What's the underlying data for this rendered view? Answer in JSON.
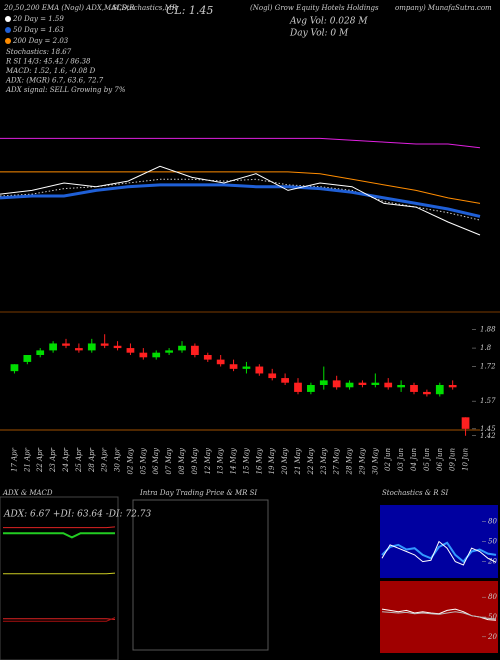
{
  "header": {
    "line1": "20,50,200 EMA (Nogl) ADX,MACD,R",
    "line2": "SI,Stochastics,MR",
    "close": "CL: 1.45",
    "company": "(Nogl) Grow Equity Hotels Holdings",
    "site": "ompany) MunafaSutra.com",
    "avg_vol": "Avg Vol: 0.028 M",
    "day_vol": "Day Vol: 0 M",
    "legend": [
      {
        "text": "20 Day = 1.59",
        "color": "#ffffff"
      },
      {
        "text": "50 Day = 1.63",
        "color": "#1f5fd6"
      },
      {
        "text": "200 Day = 2.03",
        "color": "#ff8c00"
      }
    ],
    "notes": [
      "Stochastics: 18.67",
      "R SI 14/3: 45.42 / 86.38",
      "MACD: 1.52, 1.6, -0.08 D",
      "ADX: (MGR) 6.7, 63.6, 72.7",
      "ADX signal: SELL Growing by 7%"
    ]
  },
  "intraday": {
    "title": "Intra Day Trading Price & MR SI"
  },
  "chart_data": [
    {
      "type": "line",
      "ylim": [
        1.2,
        2.6
      ],
      "series": [
        {
          "color": "#e020e0",
          "values": [
            2.07,
            2.07,
            2.07,
            2.07,
            2.07,
            2.07,
            2.07,
            2.07,
            2.07,
            2.07,
            2.07,
            2.06,
            2.05,
            2.04,
            2.04,
            2.02
          ]
        },
        {
          "color": "#ff8c00",
          "values": [
            1.89,
            1.89,
            1.89,
            1.89,
            1.89,
            1.89,
            1.89,
            1.89,
            1.89,
            1.89,
            1.88,
            1.85,
            1.82,
            1.79,
            1.75,
            1.72
          ]
        },
        {
          "color": "#cccccc",
          "style": "dotted",
          "values": [
            1.76,
            1.77,
            1.8,
            1.81,
            1.83,
            1.85,
            1.85,
            1.84,
            1.85,
            1.82,
            1.81,
            1.79,
            1.73,
            1.7,
            1.67,
            1.63
          ]
        },
        {
          "color": "#1f5fd6",
          "width": 3,
          "values": [
            1.75,
            1.76,
            1.76,
            1.79,
            1.81,
            1.82,
            1.82,
            1.82,
            1.81,
            1.81,
            1.8,
            1.78,
            1.75,
            1.72,
            1.69,
            1.65
          ]
        },
        {
          "color": "#ffffff",
          "values": [
            1.77,
            1.79,
            1.83,
            1.81,
            1.84,
            1.92,
            1.86,
            1.83,
            1.88,
            1.79,
            1.83,
            1.81,
            1.72,
            1.7,
            1.62,
            1.55
          ]
        }
      ]
    },
    {
      "type": "candlestick",
      "ylim": [
        1.38,
        1.9
      ],
      "up_color": "#00dd00",
      "down_color": "#ff2020",
      "yticks": [
        1.88,
        {
          "value": 1.8,
          "label": "1.8"
        },
        1.72,
        1.57,
        1.45,
        1.42
      ],
      "categories": [
        "17 Apr",
        "21 Apr",
        "22 Apr",
        "23 Apr",
        "24 Apr",
        "25 Apr",
        "28 Apr",
        "29 Apr",
        "30 Apr",
        "02 May",
        "05 May",
        "06 May",
        "07 May",
        "08 May",
        "09 May",
        "12 May",
        "13 May",
        "14 May",
        "15 May",
        "16 May",
        "19 May",
        "20 May",
        "21 May",
        "22 May",
        "23 May",
        "27 May",
        "28 May",
        "29 May",
        "30 May",
        "02 Jun",
        "03 Jun",
        "04 Jun",
        "05 Jun",
        "06 Jun",
        "09 Jun",
        "10 Jun"
      ],
      "open": [
        1.7,
        1.74,
        1.77,
        1.79,
        1.82,
        1.8,
        1.79,
        1.82,
        1.81,
        1.8,
        1.78,
        1.76,
        1.78,
        1.79,
        1.81,
        1.77,
        1.75,
        1.73,
        1.71,
        1.72,
        1.69,
        1.67,
        1.65,
        1.61,
        1.64,
        1.66,
        1.63,
        1.65,
        1.64,
        1.65,
        1.63,
        1.64,
        1.61,
        1.6,
        1.64,
        1.5
      ],
      "high": [
        1.73,
        1.77,
        1.8,
        1.83,
        1.84,
        1.82,
        1.84,
        1.86,
        1.83,
        1.82,
        1.8,
        1.79,
        1.8,
        1.83,
        1.82,
        1.78,
        1.77,
        1.75,
        1.74,
        1.73,
        1.71,
        1.69,
        1.67,
        1.65,
        1.72,
        1.68,
        1.66,
        1.66,
        1.69,
        1.67,
        1.66,
        1.65,
        1.62,
        1.65,
        1.66,
        1.5
      ],
      "low": [
        1.69,
        1.73,
        1.76,
        1.78,
        1.8,
        1.78,
        1.78,
        1.8,
        1.79,
        1.77,
        1.75,
        1.75,
        1.77,
        1.78,
        1.76,
        1.74,
        1.72,
        1.7,
        1.69,
        1.68,
        1.66,
        1.64,
        1.6,
        1.6,
        1.62,
        1.62,
        1.62,
        1.63,
        1.63,
        1.62,
        1.61,
        1.6,
        1.59,
        1.59,
        1.62,
        1.42
      ],
      "close": [
        1.73,
        1.77,
        1.79,
        1.82,
        1.81,
        1.79,
        1.82,
        1.81,
        1.8,
        1.78,
        1.76,
        1.78,
        1.79,
        1.81,
        1.77,
        1.75,
        1.73,
        1.71,
        1.72,
        1.69,
        1.67,
        1.65,
        1.61,
        1.64,
        1.66,
        1.63,
        1.65,
        1.64,
        1.65,
        1.63,
        1.64,
        1.61,
        1.6,
        1.64,
        1.63,
        1.45
      ]
    },
    {
      "type": "line",
      "title": "ADX & MACD",
      "annotation": "ADX: 6.67 +DI: 63.64 -DI: 72.73",
      "ylim": [
        0,
        100
      ],
      "series": [
        {
          "color": "#22cc22",
          "width": 2,
          "values": [
            64,
            64,
            64,
            64,
            64,
            64,
            64,
            64,
            58,
            64,
            64,
            64,
            64,
            64
          ]
        },
        {
          "color": "#dd2222",
          "values": [
            72,
            72,
            72,
            72,
            72,
            72,
            72,
            72,
            72,
            72,
            72,
            72,
            72,
            73
          ]
        },
        {
          "color": "#cccc22",
          "values": [
            6,
            6,
            6,
            6,
            6,
            6,
            6,
            6,
            6,
            6,
            6,
            6,
            6,
            7
          ]
        }
      ]
    },
    {
      "type": "line",
      "ylim": [
        0,
        3
      ],
      "series": [
        {
          "color": "#dd2222",
          "values": [
            1.55,
            1.55,
            1.55,
            1.55,
            1.55,
            1.55,
            1.55,
            1.55,
            1.55,
            1.55,
            1.55,
            1.55,
            1.55,
            1.52
          ]
        },
        {
          "color": "#aa1111",
          "values": [
            1.45,
            1.45,
            1.45,
            1.45,
            1.45,
            1.45,
            1.45,
            1.45,
            1.45,
            1.45,
            1.45,
            1.45,
            1.45,
            1.6
          ]
        }
      ]
    },
    {
      "type": "line",
      "title": "Stochastics & R SI",
      "background": "#0000a0",
      "ylim": [
        0,
        100
      ],
      "yticks": [
        80,
        50,
        20
      ],
      "series": [
        {
          "color": "#3399ff",
          "width": 2,
          "values": [
            30,
            42,
            45,
            38,
            40,
            30,
            25,
            42,
            48,
            30,
            20,
            35,
            38,
            32,
            30
          ]
        },
        {
          "color": "#ffffff",
          "values": [
            25,
            45,
            40,
            35,
            30,
            20,
            22,
            50,
            40,
            20,
            15,
            40,
            35,
            25,
            19
          ]
        }
      ]
    },
    {
      "type": "line",
      "background": "#a00000",
      "ylim": [
        0,
        100
      ],
      "yticks": [
        80,
        50,
        20
      ],
      "series": [
        {
          "color": "#ffffff",
          "values": [
            62,
            60,
            58,
            60,
            56,
            58,
            56,
            55,
            60,
            62,
            58,
            52,
            50,
            46,
            45
          ]
        },
        {
          "color": "#bbbbbb",
          "values": [
            58,
            57,
            56,
            57,
            55,
            56,
            55,
            54,
            56,
            58,
            56,
            52,
            50,
            48,
            47
          ]
        }
      ]
    }
  ]
}
